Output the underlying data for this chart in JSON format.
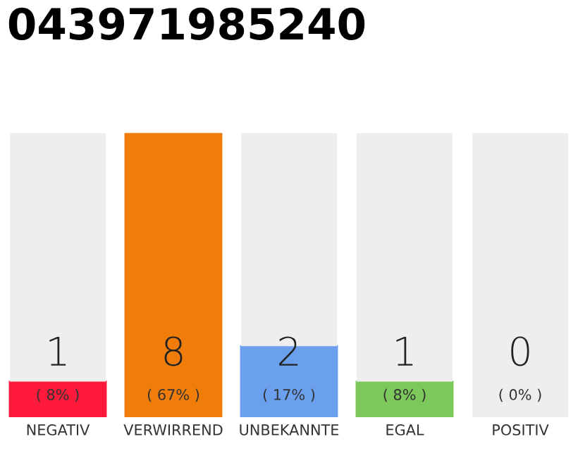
{
  "chart_data": {
    "type": "bar",
    "title": "043971985240",
    "categories": [
      "NEGATIV",
      "VERWIRREND",
      "UNBEKANNTE",
      "EGAL",
      "POSITIV"
    ],
    "stacked": true,
    "series": [
      {
        "colors": [
          "#ff1a3c",
          "#f07d0a",
          "#6aa0ee",
          "#7dc85a",
          "#4caf50"
        ],
        "values": [
          1,
          8,
          2,
          1,
          0
        ],
        "value_labels": [
          "1",
          "8",
          "2",
          "1",
          "0"
        ]
      },
      {
        "color": "#eeeeee",
        "values": [
          7,
          0,
          6,
          7,
          8
        ]
      }
    ],
    "annotations": [
      "( 8% )",
      "( 67% )",
      "( 17% )",
      "( 8% )",
      "( 0% )"
    ],
    "grid": false,
    "legend": false,
    "tick_labels": "x"
  }
}
